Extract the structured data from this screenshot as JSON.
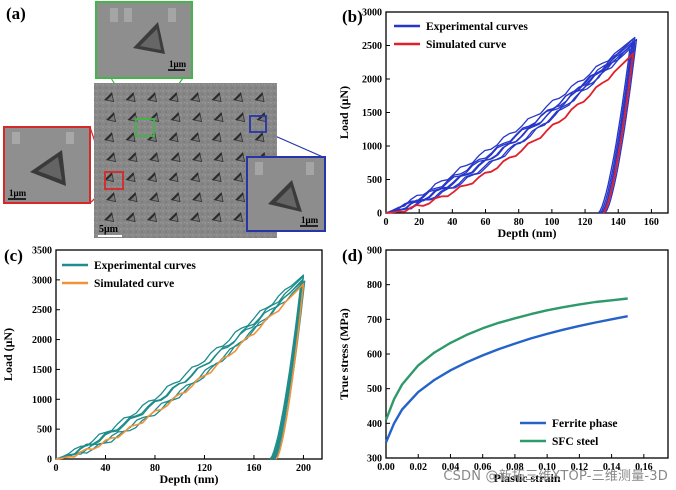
{
  "panels": {
    "a": {
      "label": "(a)",
      "scalebars": {
        "main": "5μm",
        "green": "1μm",
        "red": "1μm",
        "blue": "1μm"
      },
      "colors": {
        "green": "#43b549",
        "red": "#d62828",
        "blue": "#2636a8"
      }
    },
    "b": {
      "label": "(b)"
    },
    "c": {
      "label": "(c)"
    },
    "d": {
      "label": "(d)"
    }
  },
  "watermark": "CSDN @新拓三维XTOP-三维测量-3D",
  "chart_data": [
    {
      "id": "b",
      "type": "line",
      "xlabel": "Depth (nm)",
      "ylabel": "Load (μN)",
      "xlim": [
        0,
        170
      ],
      "ylim": [
        0,
        3000
      ],
      "xticks": [
        0,
        20,
        40,
        60,
        80,
        100,
        120,
        140,
        160
      ],
      "yticks": [
        0,
        500,
        1000,
        1500,
        2000,
        2500,
        3000
      ],
      "legend_position": "top-left",
      "series": [
        {
          "name": "Experimental curves",
          "color": "#2636c8",
          "width": 1.3,
          "curves": [
            {
              "hmax": 150,
              "pmax": 2620,
              "hf": 131,
              "pw": 1.35
            },
            {
              "hmax": 149,
              "pmax": 2560,
              "hf": 130,
              "pw": 1.25
            },
            {
              "hmax": 151,
              "pmax": 2590,
              "hf": 132,
              "pw": 1.45
            },
            {
              "hmax": 148,
              "pmax": 2500,
              "hf": 129,
              "pw": 1.3
            },
            {
              "hmax": 150,
              "pmax": 2540,
              "hf": 131,
              "pw": 1.2
            },
            {
              "hmax": 147,
              "pmax": 2450,
              "hf": 128,
              "pw": 1.4
            },
            {
              "hmax": 149,
              "pmax": 2600,
              "hf": 130,
              "pw": 1.15
            }
          ]
        },
        {
          "name": "Simulated curve",
          "color": "#e0202a",
          "width": 1.8,
          "curves": [
            {
              "hmax": 149,
              "pmax": 2380,
              "hf": 131,
              "pw": 1.55
            }
          ]
        }
      ]
    },
    {
      "id": "c",
      "type": "line",
      "xlabel": "Depth (nm)",
      "ylabel": "Load (μN)",
      "xlim": [
        0,
        215
      ],
      "ylim": [
        0,
        3500
      ],
      "xticks": [
        0,
        40,
        80,
        120,
        160,
        200
      ],
      "yticks": [
        0,
        500,
        1000,
        1500,
        2000,
        2500,
        3000,
        3500
      ],
      "legend_position": "top-left",
      "series": [
        {
          "name": "Experimental curves",
          "color": "#1e8c8a",
          "width": 1.3,
          "curves": [
            {
              "hmax": 200,
              "pmax": 3060,
              "hf": 176,
              "pw": 1.3
            },
            {
              "hmax": 199,
              "pmax": 3000,
              "hf": 174,
              "pw": 1.5
            },
            {
              "hmax": 201,
              "pmax": 2980,
              "hf": 177,
              "pw": 1.4
            },
            {
              "hmax": 198,
              "pmax": 2950,
              "hf": 173,
              "pw": 1.25
            },
            {
              "hmax": 200,
              "pmax": 3080,
              "hf": 175,
              "pw": 1.2
            }
          ]
        },
        {
          "name": "Simulated curve",
          "color": "#f0923a",
          "width": 1.6,
          "curves": [
            {
              "hmax": 200,
              "pmax": 2930,
              "hf": 178,
              "pw": 1.45
            }
          ]
        }
      ]
    },
    {
      "id": "d",
      "type": "line",
      "xlabel": "Plastic strain",
      "ylabel": "True stress (MPa)",
      "xlim": [
        0,
        0.175
      ],
      "ylim": [
        300,
        900
      ],
      "yticks": [
        300,
        400,
        500,
        600,
        700,
        800,
        900
      ],
      "xticks": [
        0.0,
        0.02,
        0.04,
        0.06,
        0.08,
        0.1,
        0.12,
        0.14,
        0.16
      ],
      "legend_position": "bottom-right",
      "series": [
        {
          "name": "Ferrite phase",
          "color": "#2463c8",
          "x": [
            0,
            0.005,
            0.01,
            0.02,
            0.03,
            0.04,
            0.05,
            0.06,
            0.07,
            0.08,
            0.09,
            0.1,
            0.11,
            0.12,
            0.13,
            0.14,
            0.15
          ],
          "y": [
            345,
            400,
            440,
            490,
            525,
            553,
            576,
            596,
            614,
            630,
            645,
            658,
            670,
            681,
            691,
            700,
            709
          ]
        },
        {
          "name": "SFC steel",
          "color": "#2e9a6a",
          "x": [
            0,
            0.005,
            0.01,
            0.02,
            0.03,
            0.04,
            0.05,
            0.06,
            0.07,
            0.08,
            0.09,
            0.1,
            0.11,
            0.12,
            0.13,
            0.14,
            0.15
          ],
          "y": [
            410,
            470,
            512,
            567,
            604,
            632,
            655,
            674,
            690,
            703,
            715,
            726,
            735,
            743,
            750,
            755,
            760
          ]
        }
      ]
    }
  ]
}
